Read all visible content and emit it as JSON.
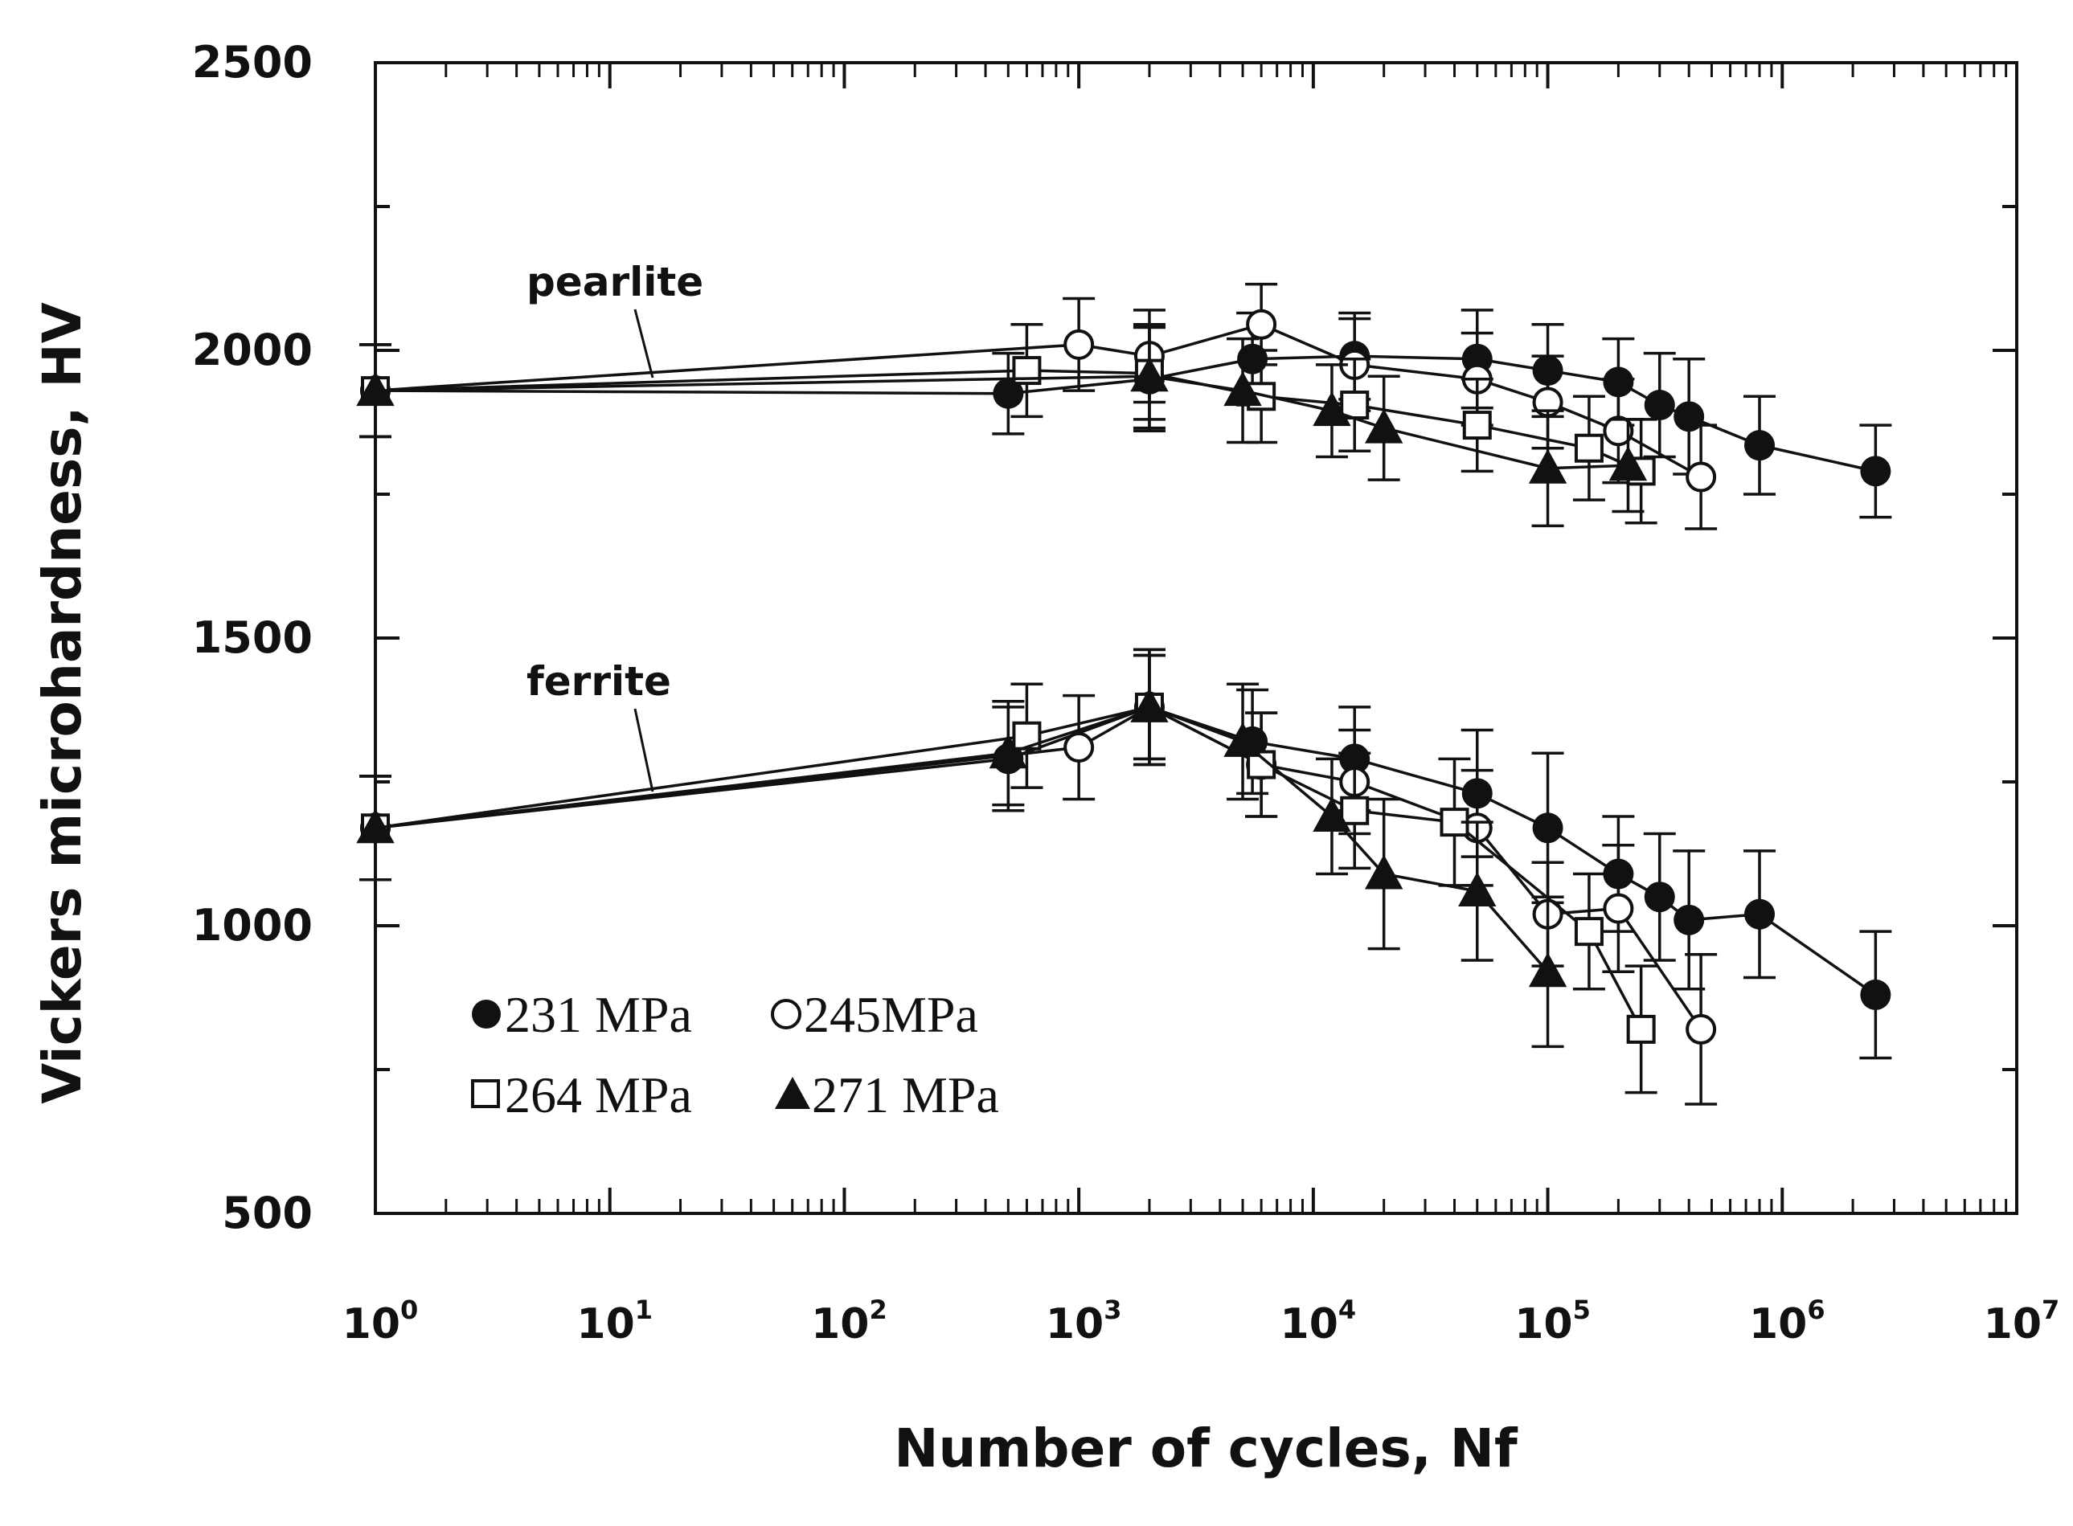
{
  "chart_data": {
    "type": "line",
    "title": "",
    "xlabel": "Number of cycles, Nf",
    "ylabel": "Vickers microhardness, HV",
    "xscale": "log",
    "xlim_log10": [
      0,
      7
    ],
    "ylim": [
      500,
      2500
    ],
    "yticks": [
      500,
      1000,
      1500,
      2000,
      2500
    ],
    "xtick_labels": [
      {
        "base": "10",
        "exp": "0",
        "log": 0
      },
      {
        "base": "10",
        "exp": "1",
        "log": 1
      },
      {
        "base": "10",
        "exp": "2",
        "log": 2
      },
      {
        "base": "10",
        "exp": "3",
        "log": 3
      },
      {
        "base": "10",
        "exp": "4",
        "log": 4
      },
      {
        "base": "10",
        "exp": "5",
        "log": 5
      },
      {
        "base": "10",
        "exp": "6",
        "log": 6
      },
      {
        "base": "10",
        "exp": "7",
        "log": 7
      }
    ],
    "annotations": [
      {
        "text": "pearlite",
        "target": {
          "x": 60,
          "y": 1990
        }
      },
      {
        "text": "ferrite",
        "target": {
          "x": 60,
          "y": 1250
        }
      }
    ],
    "legend": {
      "position": "bottom-left",
      "entries": [
        {
          "label": "231 MPa",
          "marker": "circle",
          "filled": true
        },
        {
          "label": "245MPa",
          "marker": "circle",
          "filled": false
        },
        {
          "label": "264 MPa",
          "marker": "square",
          "filled": false
        },
        {
          "label": "271 MPa",
          "marker": "triangle",
          "filled": true
        }
      ]
    },
    "series": [
      {
        "name": "231 MPa",
        "phase": "pearlite",
        "marker": "circle",
        "filled": true,
        "x": [
          1,
          500,
          2000,
          5500,
          15000,
          50000,
          100000,
          200000,
          300000,
          400000,
          800000,
          2500000
        ],
        "y": [
          1930,
          1925,
          1950,
          1985,
          1990,
          1985,
          1965,
          1945,
          1905,
          1885,
          1835,
          1790
        ],
        "err": [
          80,
          70,
          90,
          80,
          75,
          85,
          80,
          75,
          90,
          100,
          85,
          80
        ]
      },
      {
        "name": "245MPa",
        "phase": "pearlite",
        "marker": "circle",
        "filled": false,
        "x": [
          1,
          1000,
          2000,
          6000,
          15000,
          50000,
          100000,
          200000,
          450000
        ],
        "y": [
          1930,
          2010,
          1990,
          2045,
          1975,
          1950,
          1910,
          1860,
          1780
        ],
        "err": [
          80,
          80,
          80,
          70,
          80,
          80,
          80,
          90,
          90
        ]
      },
      {
        "name": "264 MPa",
        "phase": "pearlite",
        "marker": "square",
        "filled": false,
        "x": [
          1,
          600,
          2000,
          6000,
          15000,
          50000,
          150000,
          250000
        ],
        "y": [
          1930,
          1965,
          1960,
          1920,
          1905,
          1870,
          1830,
          1790
        ],
        "err": [
          80,
          80,
          80,
          80,
          80,
          80,
          90,
          90
        ]
      },
      {
        "name": "271 MPa",
        "phase": "pearlite",
        "marker": "triangle",
        "filled": true,
        "x": [
          1,
          2000,
          5000,
          12000,
          20000,
          100000,
          220000
        ],
        "y": [
          1930,
          1955,
          1930,
          1895,
          1865,
          1795,
          1800
        ],
        "err": [
          80,
          90,
          90,
          80,
          90,
          100,
          80
        ]
      },
      {
        "name": "231 MPa",
        "phase": "ferrite",
        "marker": "circle",
        "filled": true,
        "x": [
          1,
          500,
          2000,
          5500,
          15000,
          50000,
          100000,
          200000,
          300000,
          400000,
          800000,
          2500000
        ],
        "y": [
          1170,
          1290,
          1380,
          1320,
          1290,
          1230,
          1170,
          1090,
          1050,
          1010,
          1020,
          880
        ],
        "err": [
          90,
          90,
          100,
          90,
          90,
          110,
          130,
          100,
          110,
          120,
          110,
          110
        ]
      },
      {
        "name": "245MPa",
        "phase": "ferrite",
        "marker": "circle",
        "filled": false,
        "x": [
          1,
          1000,
          2000,
          6000,
          15000,
          50000,
          100000,
          200000,
          450000
        ],
        "y": [
          1170,
          1310,
          1380,
          1280,
          1250,
          1170,
          1020,
          1030,
          820
        ],
        "err": [
          90,
          90,
          90,
          90,
          90,
          100,
          90,
          110,
          130
        ]
      },
      {
        "name": "264 MPa",
        "phase": "ferrite",
        "marker": "square",
        "filled": false,
        "x": [
          1,
          600,
          2000,
          6000,
          15000,
          40000,
          150000,
          250000
        ],
        "y": [
          1170,
          1330,
          1380,
          1280,
          1200,
          1180,
          990,
          820
        ],
        "err": [
          90,
          90,
          90,
          90,
          100,
          110,
          100,
          110
        ]
      },
      {
        "name": "271 MPa",
        "phase": "ferrite",
        "marker": "triangle",
        "filled": true,
        "x": [
          1,
          500,
          2000,
          5000,
          12000,
          20000,
          50000,
          100000
        ],
        "y": [
          1170,
          1300,
          1380,
          1320,
          1190,
          1090,
          1060,
          920
        ],
        "err": [
          90,
          90,
          100,
          100,
          100,
          130,
          120,
          130
        ]
      }
    ]
  }
}
